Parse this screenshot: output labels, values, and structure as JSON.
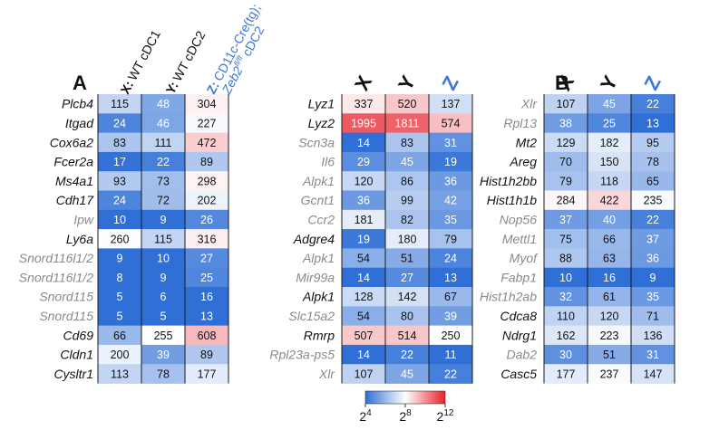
{
  "chart_data": [
    {
      "type": "heatmap",
      "panel": "A",
      "legend": {
        "x_label": "X:",
        "x_text": "WT cDC1",
        "y_label": "Y:",
        "y_text": "WT cDC2",
        "z_label": "Z:",
        "z_text_1": "CD11c-Cre(tg);",
        "z_text_2": "Zeb2fl/fl cDC2"
      },
      "columns": [
        "X",
        "Y",
        "Z"
      ],
      "rows": [
        {
          "gene": "Plcb4",
          "values": [
            115,
            48,
            304
          ],
          "dim": false
        },
        {
          "gene": "Itgad",
          "values": [
            24,
            46,
            227
          ],
          "dim": false
        },
        {
          "gene": "Cox6a2",
          "values": [
            83,
            111,
            472
          ],
          "dim": false
        },
        {
          "gene": "Fcer2a",
          "values": [
            17,
            22,
            89
          ],
          "dim": false
        },
        {
          "gene": "Ms4a1",
          "values": [
            93,
            73,
            298
          ],
          "dim": false
        },
        {
          "gene": "Cdh17",
          "values": [
            24,
            72,
            202
          ],
          "dim": false
        },
        {
          "gene": "Ipw",
          "values": [
            10,
            9,
            26
          ],
          "dim": true
        },
        {
          "gene": "Ly6a",
          "values": [
            260,
            115,
            316
          ],
          "dim": false
        },
        {
          "gene": "Snord116l1/2",
          "values": [
            9,
            10,
            27
          ],
          "dim": true
        },
        {
          "gene": "Snord116l1/2",
          "values": [
            8,
            9,
            25
          ],
          "dim": true
        },
        {
          "gene": "Snord115",
          "values": [
            5,
            6,
            16
          ],
          "dim": true
        },
        {
          "gene": "Snord115",
          "values": [
            5,
            5,
            13
          ],
          "dim": true
        },
        {
          "gene": "Cd69",
          "values": [
            66,
            255,
            608
          ],
          "dim": false
        },
        {
          "gene": "Cldn1",
          "values": [
            200,
            39,
            89
          ],
          "dim": false
        },
        {
          "gene": "Cysltr1",
          "values": [
            113,
            78,
            177
          ],
          "dim": false
        }
      ]
    },
    {
      "type": "heatmap",
      "panel": "",
      "columns": [
        "X",
        "Y",
        "Z"
      ],
      "rows": [
        {
          "gene": "Lyz1",
          "values": [
            337,
            520,
            137
          ],
          "dim": false
        },
        {
          "gene": "Lyz2",
          "values": [
            1995,
            1811,
            574
          ],
          "dim": false
        },
        {
          "gene": "Scn3a",
          "values": [
            14,
            83,
            31
          ],
          "dim": true
        },
        {
          "gene": "Il6",
          "values": [
            29,
            45,
            19
          ],
          "dim": true
        },
        {
          "gene": "Alpk1",
          "values": [
            120,
            86,
            36
          ],
          "dim": true
        },
        {
          "gene": "Gcnt1",
          "values": [
            36,
            99,
            42
          ],
          "dim": true
        },
        {
          "gene": "Ccr2",
          "values": [
            181,
            82,
            35
          ],
          "dim": true
        },
        {
          "gene": "Adgre4",
          "values": [
            19,
            180,
            79
          ],
          "dim": false
        },
        {
          "gene": "Alpk1",
          "values": [
            54,
            51,
            24
          ],
          "dim": true
        },
        {
          "gene": "Mir99a",
          "values": [
            14,
            27,
            13
          ],
          "dim": true
        },
        {
          "gene": "Alpk1",
          "values": [
            128,
            142,
            67
          ],
          "dim": false
        },
        {
          "gene": "Slc15a2",
          "values": [
            54,
            80,
            39
          ],
          "dim": true
        },
        {
          "gene": "Rmrp",
          "values": [
            507,
            514,
            250
          ],
          "dim": false
        },
        {
          "gene": "Rpl23a-ps5",
          "values": [
            14,
            22,
            11
          ],
          "dim": true
        },
        {
          "gene": "Xlr",
          "values": [
            107,
            45,
            22
          ],
          "dim": true
        }
      ]
    },
    {
      "type": "heatmap",
      "panel": "B",
      "columns": [
        "X",
        "Y",
        "Z"
      ],
      "rows": [
        {
          "gene": "Xlr",
          "values": [
            107,
            45,
            22
          ],
          "dim": true
        },
        {
          "gene": "Rpl13",
          "values": [
            38,
            25,
            13
          ],
          "dim": true
        },
        {
          "gene": "Mt2",
          "values": [
            129,
            182,
            95
          ],
          "dim": false
        },
        {
          "gene": "Areg",
          "values": [
            70,
            150,
            78
          ],
          "dim": false
        },
        {
          "gene": "Hist1h2bb",
          "values": [
            79,
            118,
            65
          ],
          "dim": false
        },
        {
          "gene": "Hist1h1b",
          "values": [
            284,
            422,
            235
          ],
          "dim": false
        },
        {
          "gene": "Nop56",
          "values": [
            37,
            40,
            22
          ],
          "dim": true
        },
        {
          "gene": "Mettl1",
          "values": [
            75,
            66,
            37
          ],
          "dim": true
        },
        {
          "gene": "Myof",
          "values": [
            88,
            63,
            36
          ],
          "dim": true
        },
        {
          "gene": "Fabp1",
          "values": [
            10,
            16,
            9
          ],
          "dim": true
        },
        {
          "gene": "Hist1h2ab",
          "values": [
            32,
            61,
            35
          ],
          "dim": true
        },
        {
          "gene": "Cdca8",
          "values": [
            110,
            120,
            71
          ],
          "dim": false
        },
        {
          "gene": "Ndrg1",
          "values": [
            162,
            223,
            136
          ],
          "dim": false
        },
        {
          "gene": "Dab2",
          "values": [
            30,
            51,
            31
          ],
          "dim": true
        },
        {
          "gene": "Casc5",
          "values": [
            177,
            237,
            147
          ],
          "dim": false
        }
      ]
    }
  ],
  "colorbar": {
    "scale": "log2",
    "min_exponent": 4,
    "mid_exponent": 8,
    "max_exponent": 12,
    "base": "2",
    "tick_exponents": [
      "4",
      "8",
      "12"
    ],
    "colors": [
      "#2f6fd6",
      "#ffffff",
      "#e8202a"
    ]
  },
  "colors": {
    "dark_text": "#111111",
    "dim_text": "#8a8a8a",
    "z_accent": "#3b78d8"
  }
}
